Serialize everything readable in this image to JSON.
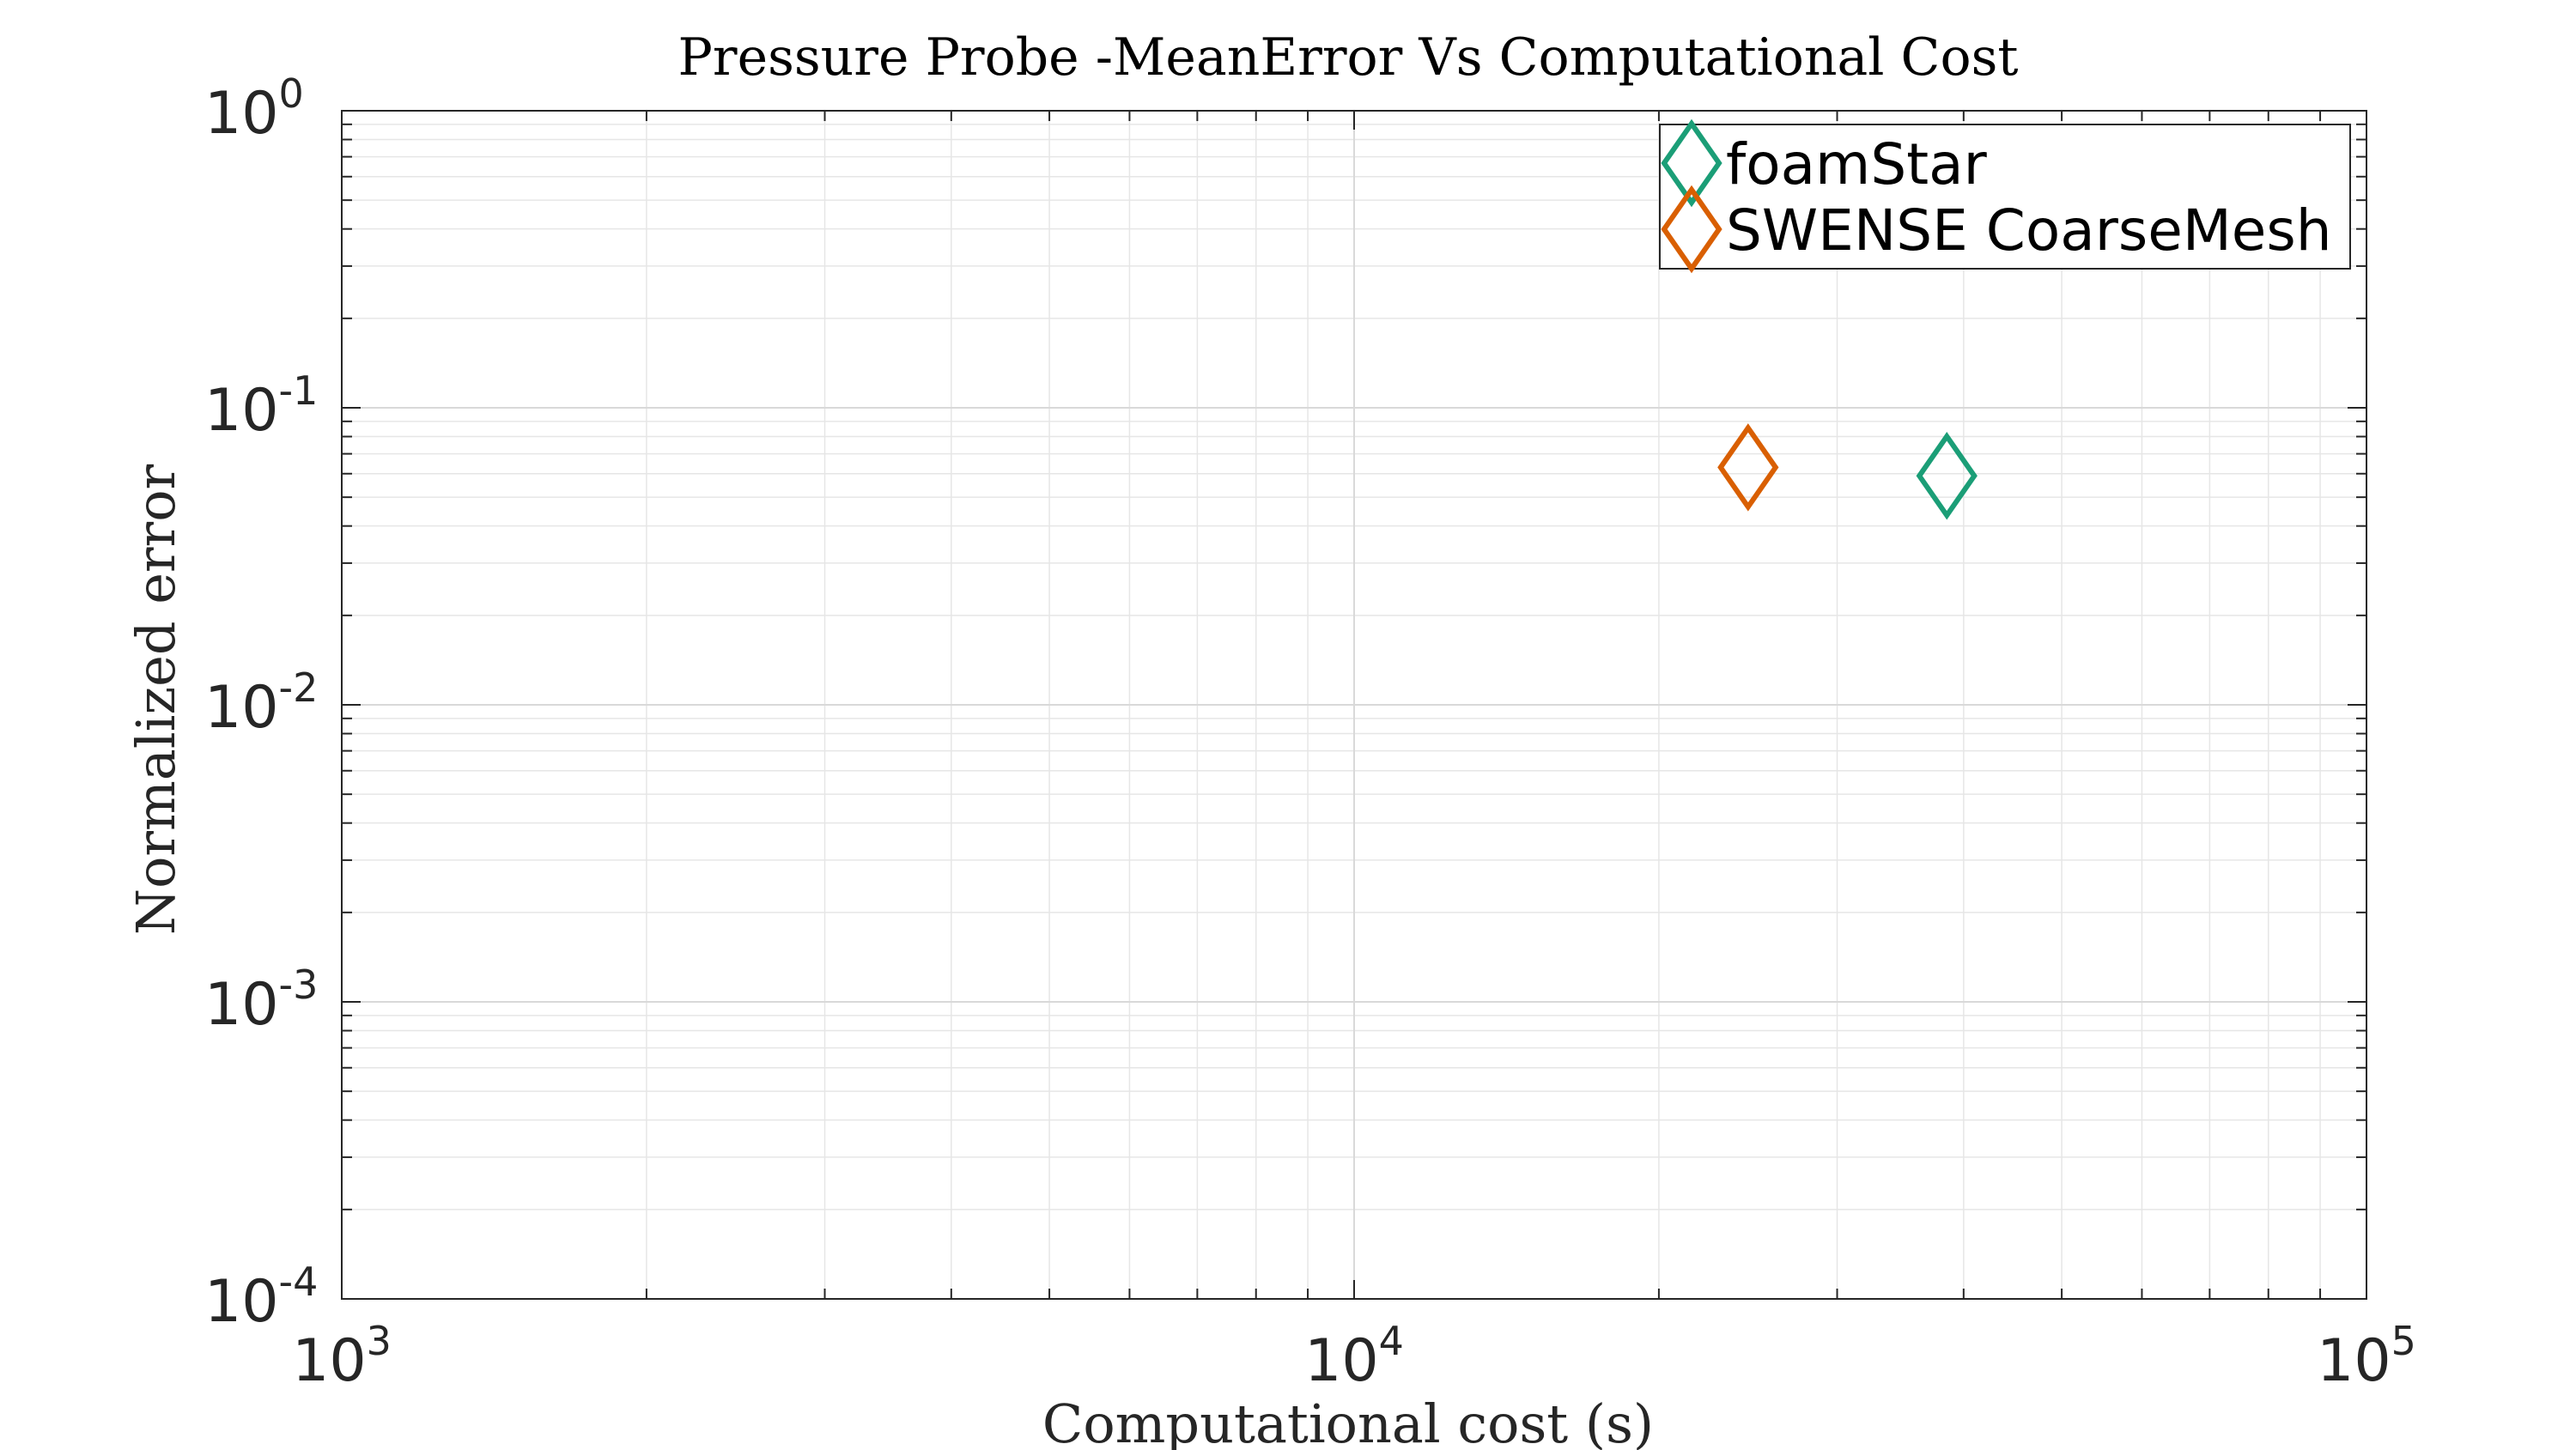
{
  "chart_data": {
    "type": "scatter",
    "title": "Pressure Probe -MeanError Vs Computational Cost",
    "xlabel": "Computational cost (s)",
    "ylabel": "Normalized error",
    "xscale": "log",
    "yscale": "log",
    "xlim": [
      1000,
      100000
    ],
    "ylim": [
      0.0001,
      1
    ],
    "grid": true,
    "legend_position": "top-right",
    "x_ticks": [
      {
        "base": "10",
        "exp": "3",
        "value": 1000
      },
      {
        "base": "10",
        "exp": "4",
        "value": 10000
      },
      {
        "base": "10",
        "exp": "5",
        "value": 100000
      }
    ],
    "y_ticks": [
      {
        "base": "10",
        "exp": "0",
        "value": 1
      },
      {
        "base": "10",
        "exp": "-1",
        "value": 0.1
      },
      {
        "base": "10",
        "exp": "-2",
        "value": 0.01
      },
      {
        "base": "10",
        "exp": "-3",
        "value": 0.001
      },
      {
        "base": "10",
        "exp": "-4",
        "value": 0.0001
      }
    ],
    "series": [
      {
        "name": "foamStar",
        "color": "#1b9e77",
        "marker": "diamond",
        "points": [
          {
            "x": 38500,
            "y": 0.059
          }
        ]
      },
      {
        "name": "SWENSE CoarseMesh",
        "color": "#d95f02",
        "marker": "diamond",
        "points": [
          {
            "x": 24500,
            "y": 0.063
          }
        ]
      }
    ]
  }
}
